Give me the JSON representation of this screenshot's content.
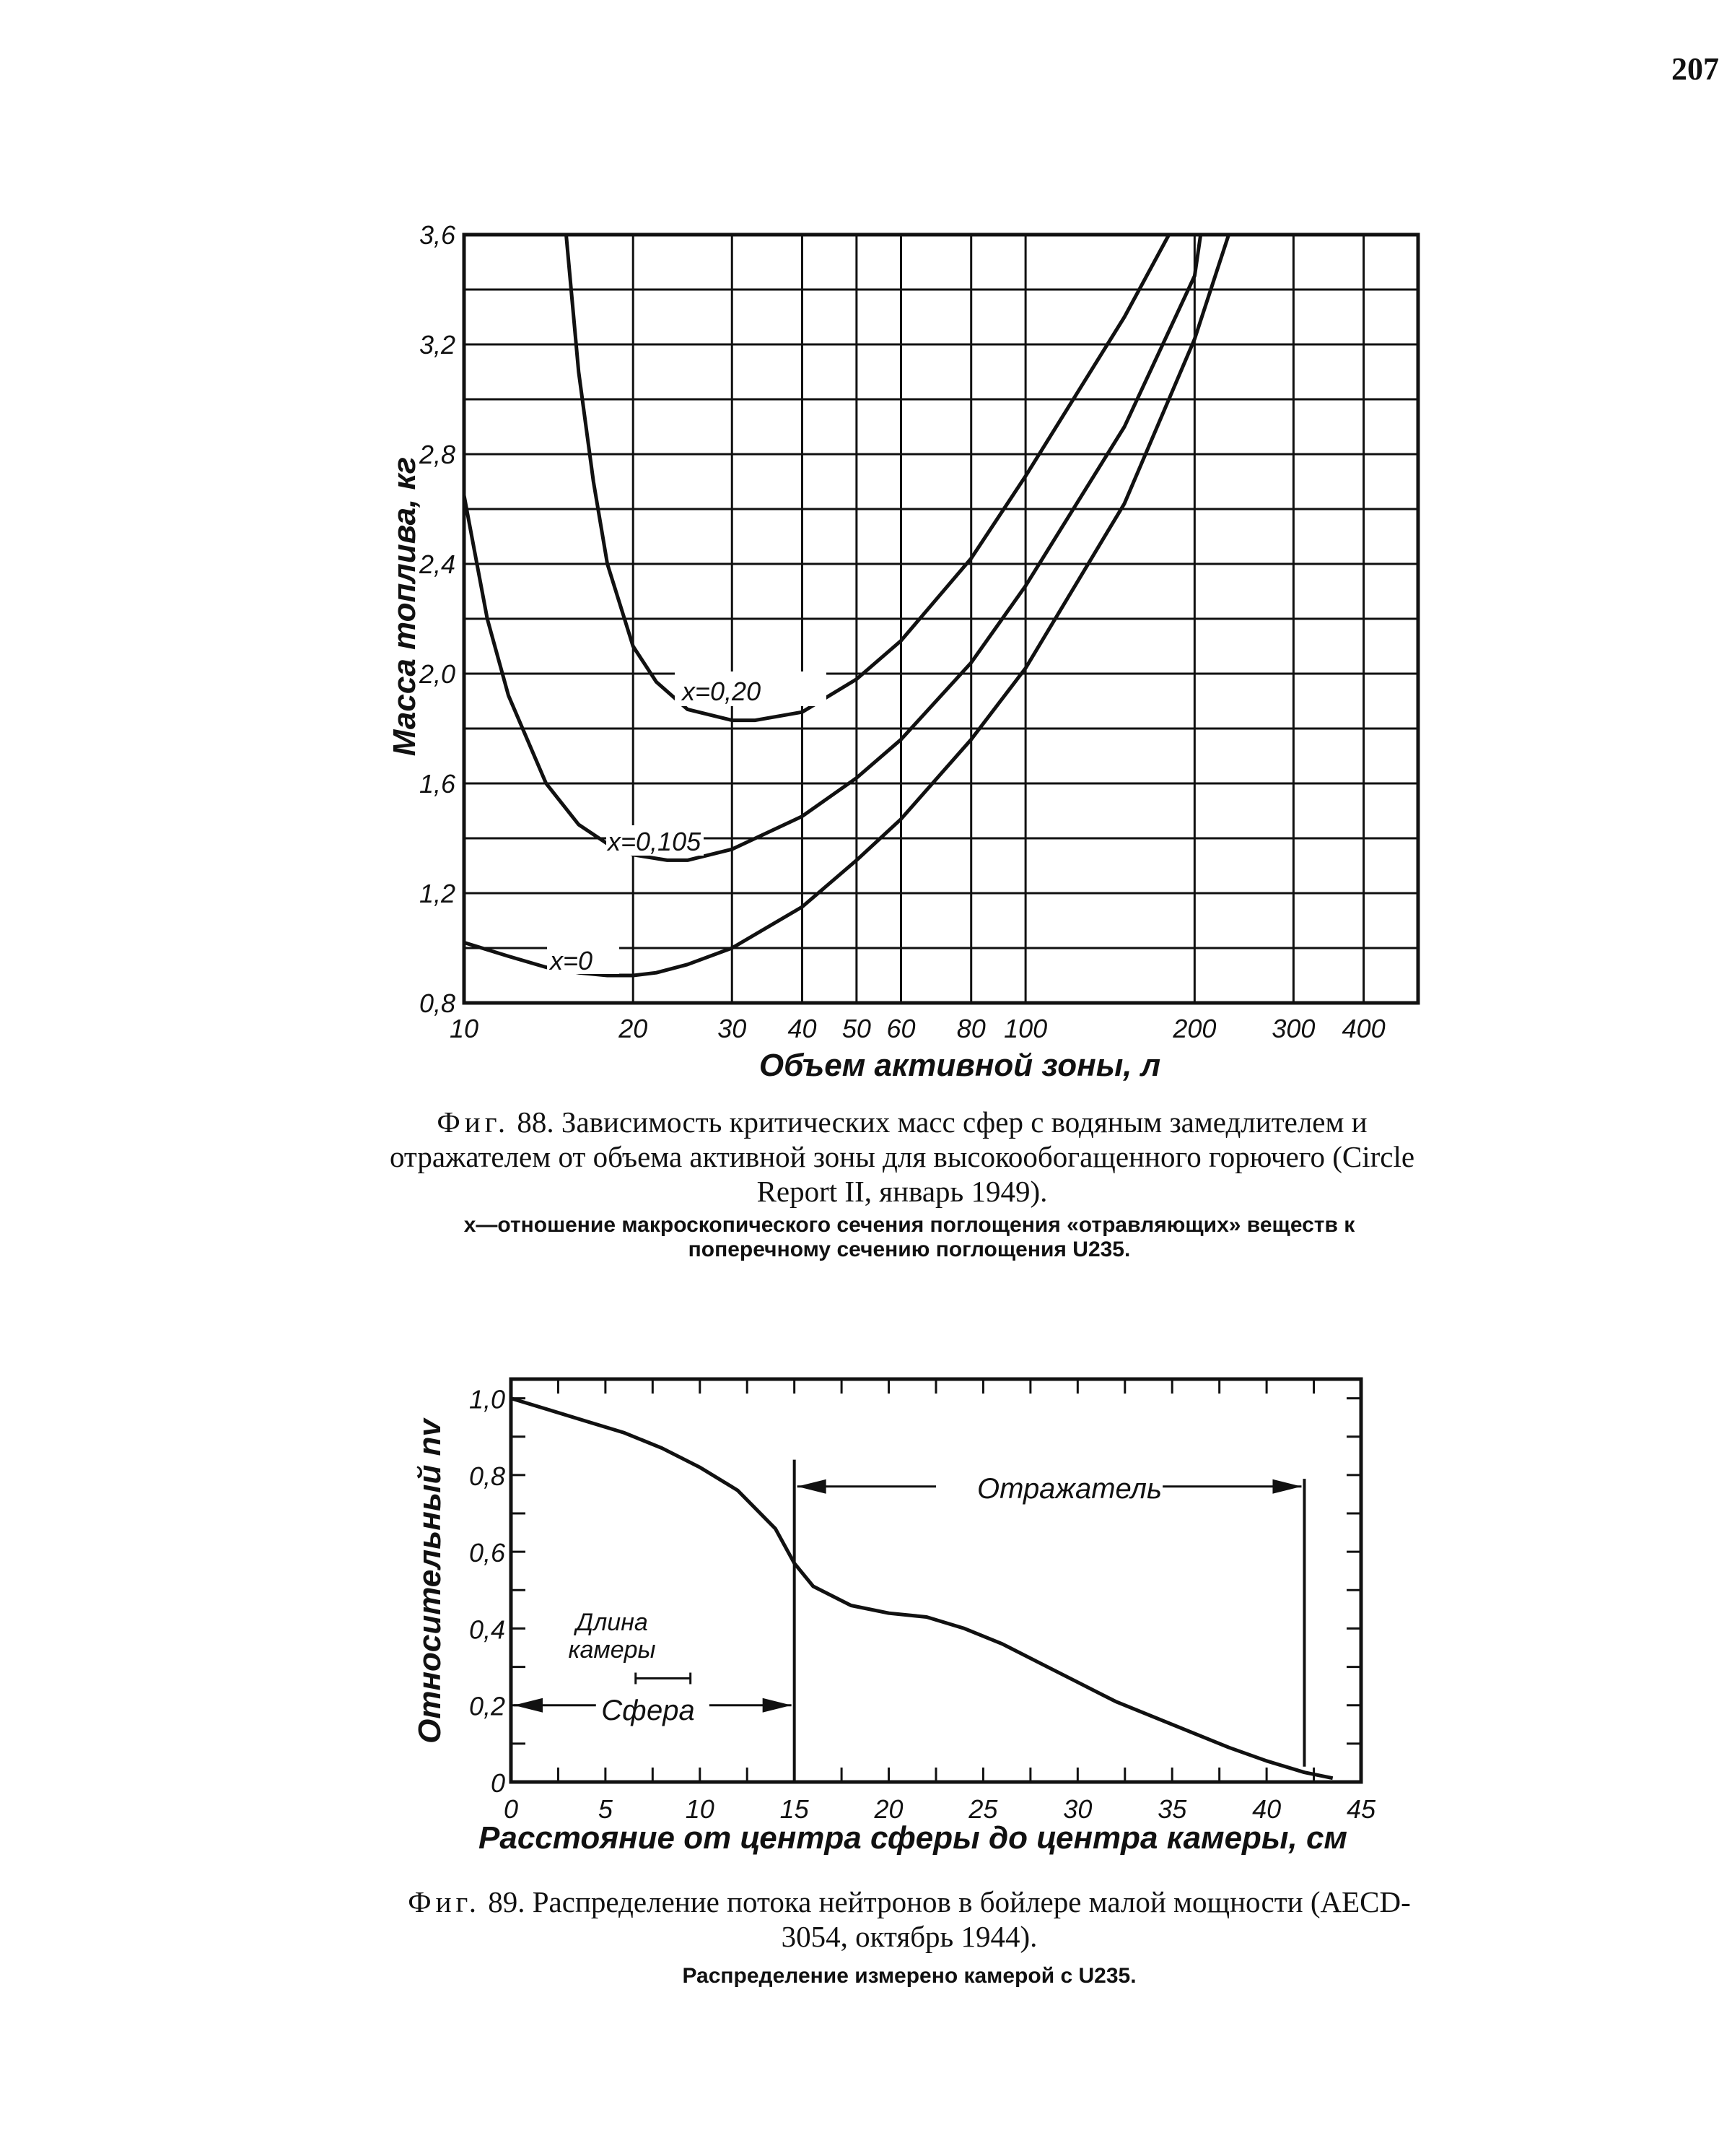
{
  "page_number": "207",
  "figure88": {
    "caption_label": "Фиг.",
    "caption_number": "88.",
    "caption_text": "Зависимость критических масс сфер с водяным замедлителем и отражателем от объема активной зоны для высокообогащенного горючего (Circle Report II, январь 1949).",
    "note": "x—отношение макроскопического сечения поглощения «отравляющих» веществ к поперечному сечению поглощения U235."
  },
  "figure89": {
    "caption_label": "Фиг.",
    "caption_number": "89.",
    "caption_text": "Распределение потока нейтронов в бойлере малой мощности (AECD-3054, октябрь 1944).",
    "note": "Распределение измерено камерой с U235."
  },
  "chart_data": [
    {
      "type": "line",
      "xscale": "log",
      "xlabel": "Объем активной зоны, л",
      "ylabel": "Масса топлива, кг",
      "xlim": [
        10,
        500
      ],
      "ylim": [
        0.8,
        3.6
      ],
      "x_ticks": [
        10,
        20,
        30,
        40,
        50,
        60,
        80,
        100,
        200,
        300,
        400
      ],
      "x_tick_labels": [
        "10",
        "20",
        "30",
        "40",
        "50",
        "60",
        "80",
        "100",
        "200",
        "300",
        "400"
      ],
      "y_ticks": [
        0.8,
        1.2,
        1.6,
        2.0,
        2.4,
        2.8,
        3.2,
        3.6
      ],
      "y_tick_labels": [
        "0,8",
        "1,2",
        "1,6",
        "2,0",
        "2,4",
        "2,8",
        "3,2",
        "3,6"
      ],
      "grid": true,
      "series": [
        {
          "name": "x=0,20",
          "x": [
            15.2,
            16,
            17,
            18,
            20,
            22,
            25,
            30,
            33,
            40,
            50,
            60,
            80,
            100,
            150,
            180
          ],
          "y": [
            3.6,
            3.1,
            2.7,
            2.4,
            2.1,
            1.97,
            1.87,
            1.83,
            1.83,
            1.86,
            1.98,
            2.12,
            2.42,
            2.72,
            3.3,
            3.6
          ]
        },
        {
          "name": "x=0,105",
          "x": [
            10,
            11,
            12,
            14,
            16,
            18,
            20,
            23,
            25,
            30,
            40,
            50,
            60,
            80,
            100,
            150,
            200,
            205
          ],
          "y": [
            2.65,
            2.2,
            1.92,
            1.6,
            1.45,
            1.38,
            1.34,
            1.32,
            1.32,
            1.36,
            1.48,
            1.62,
            1.76,
            2.04,
            2.32,
            2.9,
            3.45,
            3.6
          ]
        },
        {
          "name": "x=0",
          "x": [
            10,
            12,
            14,
            16,
            18,
            20,
            22,
            25,
            30,
            40,
            50,
            60,
            80,
            100,
            150,
            200,
            230
          ],
          "y": [
            1.02,
            0.97,
            0.93,
            0.91,
            0.9,
            0.9,
            0.91,
            0.94,
            1.0,
            1.15,
            1.32,
            1.47,
            1.76,
            2.02,
            2.62,
            3.22,
            3.6
          ]
        }
      ],
      "annotations": [
        "x=0,20",
        "x=0,105",
        "x=0"
      ]
    },
    {
      "type": "line",
      "xlabel": "Расстояние от центра сферы до центра камеры, см",
      "ylabel": "Относительный nv",
      "xlim": [
        0,
        45
      ],
      "ylim": [
        0,
        1.05
      ],
      "x_ticks": [
        0,
        5,
        10,
        15,
        20,
        25,
        30,
        35,
        40,
        45
      ],
      "x_tick_labels": [
        "0",
        "5",
        "10",
        "15",
        "20",
        "25",
        "30",
        "35",
        "40",
        "45"
      ],
      "y_ticks": [
        0,
        0.2,
        0.4,
        0.6,
        0.8,
        1.0
      ],
      "y_tick_labels": [
        "0",
        "0,2",
        "0,4",
        "0,6",
        "0,8",
        "1,0"
      ],
      "grid": false,
      "series": [
        {
          "x": [
            0,
            2,
            4,
            6,
            8,
            10,
            12,
            14,
            15,
            16,
            18,
            20,
            22,
            24,
            26,
            28,
            30,
            32,
            34,
            36,
            38,
            40,
            42,
            43.5
          ],
          "y": [
            1.0,
            0.97,
            0.94,
            0.91,
            0.87,
            0.82,
            0.76,
            0.66,
            0.57,
            0.51,
            0.46,
            0.44,
            0.43,
            0.4,
            0.36,
            0.31,
            0.26,
            0.21,
            0.17,
            0.13,
            0.09,
            0.055,
            0.025,
            0.01
          ]
        }
      ],
      "annotations": {
        "reflector": "Отражатель",
        "sphere": "Сфера",
        "chamber_length": "Длина камеры",
        "reflector_start": 15,
        "reflector_end": 42,
        "sphere_start": 0,
        "sphere_end": 15
      }
    }
  ]
}
